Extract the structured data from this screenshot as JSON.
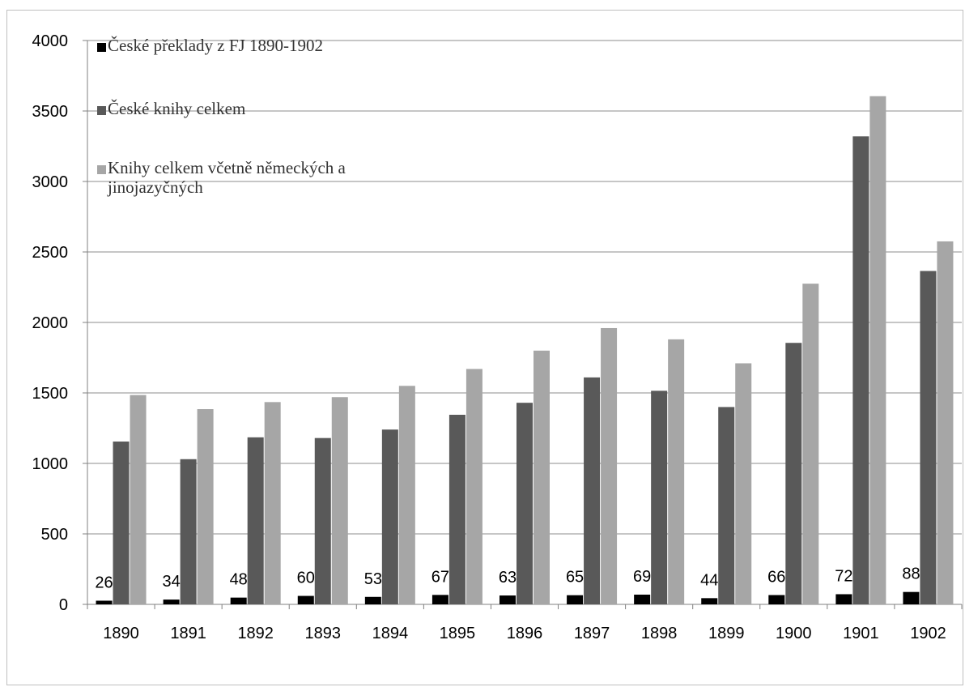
{
  "chart_data": {
    "type": "bar",
    "title": "",
    "xlabel": "",
    "ylabel": "",
    "ylim": [
      0,
      4000
    ],
    "yticks": [
      0,
      500,
      1000,
      1500,
      2000,
      2500,
      3000,
      3500,
      4000
    ],
    "grid": "horizontal",
    "legend_position": "top-left",
    "categories": [
      "1890",
      "1891",
      "1892",
      "1893",
      "1894",
      "1895",
      "1896",
      "1897",
      "1898",
      "1899",
      "1900",
      "1901",
      "1902"
    ],
    "series": [
      {
        "name": "České překlady z FJ 1890-1902",
        "legend_lines": [
          "České překlady z FJ 1890-1902"
        ],
        "color": "#000000",
        "values": [
          26,
          34,
          48,
          60,
          53,
          67,
          63,
          65,
          69,
          44,
          66,
          72,
          88
        ],
        "data_labels": [
          "26",
          "34",
          "48",
          "60",
          "53",
          "67",
          "63",
          "65",
          "69",
          "44",
          "66",
          "72",
          "88"
        ]
      },
      {
        "name": "České knihy celkem",
        "legend_lines": [
          "České knihy celkem"
        ],
        "color": "#595959",
        "values": [
          1155,
          1030,
          1185,
          1180,
          1240,
          1345,
          1430,
          1610,
          1515,
          1400,
          1855,
          3320,
          2365
        ]
      },
      {
        "name": "Knihy celkem včetně německých a jinojazyčných",
        "legend_lines": [
          "Knihy celkem včetně německých a",
          "jinojazyčných"
        ],
        "color": "#a6a6a6",
        "values": [
          1485,
          1385,
          1435,
          1470,
          1550,
          1670,
          1800,
          1960,
          1880,
          1710,
          2275,
          3605,
          2575
        ]
      }
    ]
  }
}
